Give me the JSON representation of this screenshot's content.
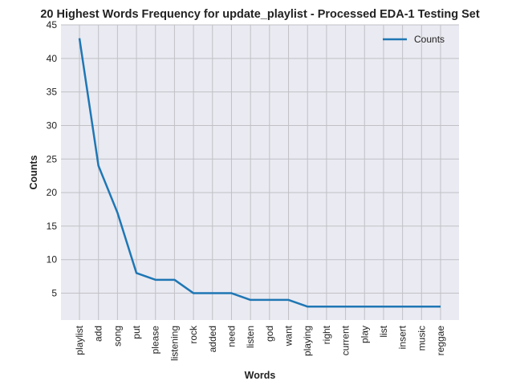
{
  "chart_data": {
    "type": "line",
    "title": "20 Highest Words Frequency for update_playlist - Processed EDA-1 Testing Set",
    "xlabel": "Words",
    "ylabel": "Counts",
    "categories": [
      "playlist",
      "add",
      "song",
      "put",
      "please",
      "listening",
      "rock",
      "added",
      "need",
      "listen",
      "god",
      "want",
      "playing",
      "right",
      "current",
      "play",
      "list",
      "insert",
      "music",
      "reggae"
    ],
    "series": [
      {
        "name": "Counts",
        "values": [
          43,
          24,
          17,
          8,
          7,
          7,
          5,
          5,
          5,
          4,
          4,
          4,
          3,
          3,
          3,
          3,
          3,
          3,
          3,
          3
        ]
      }
    ],
    "ylim": [
      1.0,
      45
    ],
    "yticks": [
      5,
      10,
      15,
      20,
      25,
      30,
      35,
      40,
      45
    ],
    "grid": true,
    "legend_position": "top-right",
    "colors": {
      "line": "#1f77b4",
      "background": "#eaeaf2",
      "grid": "#c0c0c6"
    }
  }
}
